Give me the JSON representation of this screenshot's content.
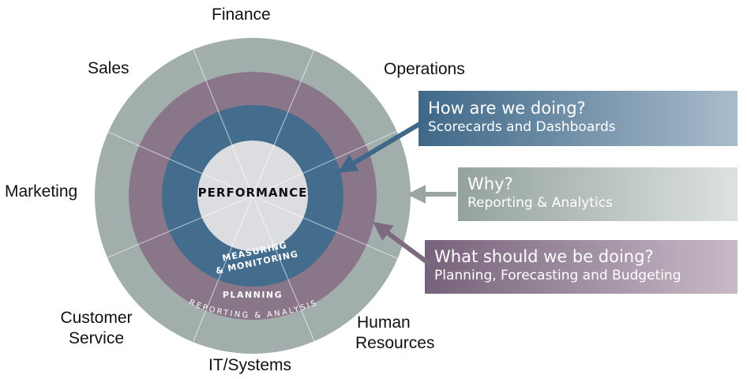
{
  "diagram": {
    "center_label": "PERFORMANCE",
    "rings": {
      "measuring_line1": "MEASURING",
      "measuring_line2": "& MONITORING",
      "planning": "PLANNING",
      "reporting": "REPORTING & ANALYSIS"
    },
    "departments": {
      "finance": "Finance",
      "operations": "Operations",
      "sales": "Sales",
      "marketing": "Marketing",
      "customer_service_line1": "Customer",
      "customer_service_line2": "Service",
      "it_systems": "IT/Systems",
      "hr_line1": "Human",
      "hr_line2": "Resources"
    },
    "callouts": [
      {
        "title": "How are we doing?",
        "subtitle": "Scorecards and Dashboards"
      },
      {
        "title": "Why?",
        "subtitle": "Reporting & Analytics"
      },
      {
        "title": "What should we be doing?",
        "subtitle": "Planning, Forecasting and Budgeting"
      }
    ],
    "colors": {
      "outer_ring": "#a2aeab",
      "planning_ring": "#8a7689",
      "measuring_ring": "#436c8d",
      "center": "#dcdde0",
      "callout_blue": "#436c8d",
      "callout_gray": "#9aa6a3",
      "callout_purple": "#7e6a80"
    }
  }
}
